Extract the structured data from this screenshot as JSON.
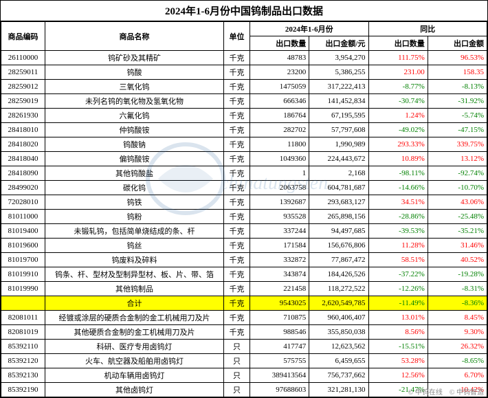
{
  "title": "2024年1-6月份中国钨制品出口数据",
  "header": {
    "group_period": "2024年1-6月份",
    "group_yoy": "同比",
    "code": "商品编码",
    "name": "商品名称",
    "unit": "单位",
    "qty": "出口数量",
    "amt": "出口金额/元",
    "yoy_qty": "出口数量",
    "yoy_amt": "出口金额"
  },
  "footer": {
    "left": "© 中钨在线",
    "right": "© 中钨智造"
  },
  "colors": {
    "positive": "#ff0000",
    "negative": "#008000",
    "highlight_bg": "#ffff00",
    "border": "#000000",
    "background": "#ffffff"
  },
  "rows": [
    {
      "code": "26110000",
      "name": "钨矿砂及其精矿",
      "unit": "千克",
      "qty": "48783",
      "amt": "3,954,270",
      "yq": "111.75%",
      "ya": "96.53%",
      "yqs": 1,
      "yas": 1
    },
    {
      "code": "28259011",
      "name": "钨酸",
      "unit": "千克",
      "qty": "23200",
      "amt": "5,386,255",
      "yq": "231.00",
      "ya": "158.35",
      "yqs": 1,
      "yas": 1
    },
    {
      "code": "28259012",
      "name": "三氧化钨",
      "unit": "千克",
      "qty": "1475059",
      "amt": "317,222,413",
      "yq": "-8.77%",
      "ya": "-8.13%",
      "yqs": -1,
      "yas": -1
    },
    {
      "code": "28259019",
      "name": "未列名钨的氧化物及氢氧化物",
      "unit": "千克",
      "qty": "666346",
      "amt": "141,452,834",
      "yq": "-30.74%",
      "ya": "-31.92%",
      "yqs": -1,
      "yas": -1
    },
    {
      "code": "28261930",
      "name": "六氟化钨",
      "unit": "千克",
      "qty": "186764",
      "amt": "67,195,595",
      "yq": "1.24%",
      "ya": "-5.74%",
      "yqs": 1,
      "yas": -1
    },
    {
      "code": "28418010",
      "name": "仲钨酸铵",
      "unit": "千克",
      "qty": "282702",
      "amt": "57,797,608",
      "yq": "-49.02%",
      "ya": "-47.15%",
      "yqs": -1,
      "yas": -1
    },
    {
      "code": "28418020",
      "name": "钨酸钠",
      "unit": "千克",
      "qty": "11800",
      "amt": "1,990,989",
      "yq": "293.33%",
      "ya": "339.75%",
      "yqs": 1,
      "yas": 1
    },
    {
      "code": "28418040",
      "name": "偏钨酸铵",
      "unit": "千克",
      "qty": "1049360",
      "amt": "224,443,672",
      "yq": "10.89%",
      "ya": "13.12%",
      "yqs": 1,
      "yas": 1
    },
    {
      "code": "28418090",
      "name": "其他钨酸盐",
      "unit": "千克",
      "qty": "1",
      "amt": "2,168",
      "yq": "-98.11%",
      "ya": "-92.74%",
      "yqs": -1,
      "yas": -1
    },
    {
      "code": "28499020",
      "name": "碳化钨",
      "unit": "千克",
      "qty": "2063758",
      "amt": "604,781,687",
      "yq": "-14.66%",
      "ya": "-10.70%",
      "yqs": -1,
      "yas": -1
    },
    {
      "code": "72028010",
      "name": "钨铁",
      "unit": "千克",
      "qty": "1392687",
      "amt": "293,683,127",
      "yq": "34.51%",
      "ya": "43.06%",
      "yqs": 1,
      "yas": 1
    },
    {
      "code": "81011000",
      "name": "钨粉",
      "unit": "千克",
      "qty": "935528",
      "amt": "265,898,156",
      "yq": "-28.86%",
      "ya": "-25.48%",
      "yqs": -1,
      "yas": -1
    },
    {
      "code": "81019400",
      "name": "未锻轧钨，包括简单烧结成的条、杆",
      "unit": "千克",
      "qty": "337244",
      "amt": "94,497,685",
      "yq": "-39.53%",
      "ya": "-35.21%",
      "yqs": -1,
      "yas": -1
    },
    {
      "code": "81019600",
      "name": "钨丝",
      "unit": "千克",
      "qty": "171584",
      "amt": "156,676,806",
      "yq": "11.28%",
      "ya": "31.46%",
      "yqs": 1,
      "yas": 1
    },
    {
      "code": "81019700",
      "name": "钨废料及碎料",
      "unit": "千克",
      "qty": "332872",
      "amt": "77,867,472",
      "yq": "58.51%",
      "ya": "40.52%",
      "yqs": 1,
      "yas": 1
    },
    {
      "code": "81019910",
      "name": "钨条、杆、型材及型制异型材、板、片、带、箔",
      "unit": "千克",
      "qty": "343874",
      "amt": "184,426,526",
      "yq": "-37.22%",
      "ya": "-19.28%",
      "yqs": -1,
      "yas": -1
    },
    {
      "code": "81019990",
      "name": "其他钨制品",
      "unit": "千克",
      "qty": "221458",
      "amt": "118,272,522",
      "yq": "-12.26%",
      "ya": "-8.31%",
      "yqs": -1,
      "yas": -1
    },
    {
      "code": "",
      "name": "合计",
      "unit": "千克",
      "qty": "9543025",
      "amt": "2,620,549,785",
      "yq": "-11.49%",
      "ya": "-8.36%",
      "yqs": -1,
      "yas": -1,
      "total": true
    },
    {
      "code": "82081011",
      "name": "经镀或涂层的硬质合金制的金工机械用刀及片",
      "unit": "千克",
      "qty": "710875",
      "amt": "960,406,407",
      "yq": "13.01%",
      "ya": "8.45%",
      "yqs": 1,
      "yas": 1
    },
    {
      "code": "82081019",
      "name": "其他硬质合金制的金工机械用刀及片",
      "unit": "千克",
      "qty": "988546",
      "amt": "355,850,038",
      "yq": "8.56%",
      "ya": "9.30%",
      "yqs": 1,
      "yas": 1
    },
    {
      "code": "85392110",
      "name": "科研、医疗专用卤钨灯",
      "unit": "只",
      "qty": "417747",
      "amt": "12,623,562",
      "yq": "-15.51%",
      "ya": "26.32%",
      "yqs": -1,
      "yas": 1
    },
    {
      "code": "85392120",
      "name": "火车、航空器及船舶用卤钨灯",
      "unit": "只",
      "qty": "575755",
      "amt": "6,459,655",
      "yq": "53.28%",
      "ya": "-8.65%",
      "yqs": 1,
      "yas": -1
    },
    {
      "code": "85392130",
      "name": "机动车辆用卤钨灯",
      "unit": "只",
      "qty": "389413564",
      "amt": "756,737,662",
      "yq": "12.56%",
      "ya": "6.70%",
      "yqs": 1,
      "yas": 1
    },
    {
      "code": "85392190",
      "name": "其他卤钨灯",
      "unit": "只",
      "qty": "97688603",
      "amt": "321,281,130",
      "yq": "-21.47%",
      "ya": "10.42%",
      "yqs": -1,
      "yas": 1
    }
  ]
}
